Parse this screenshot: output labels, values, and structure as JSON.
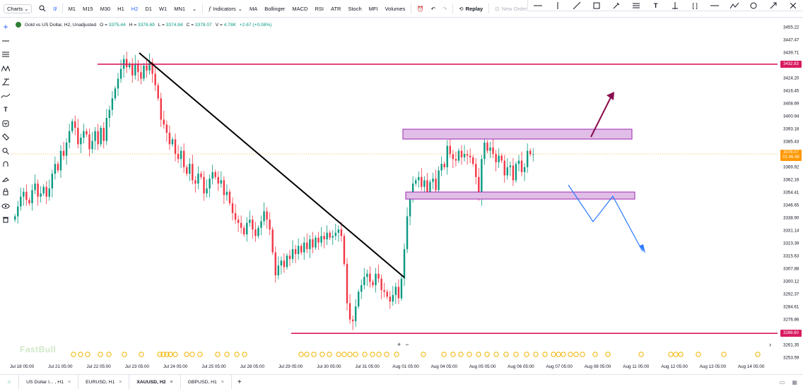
{
  "toolbar": {
    "charts_label": "Charts",
    "intervals": [
      "M1",
      "M15",
      "M30",
      "H1",
      "H2",
      "D1",
      "W1",
      "MN1"
    ],
    "active_interval": "H2",
    "indicators_label": "Indicators",
    "indicator_buttons": [
      "MA",
      "Bollinger",
      "MACD",
      "RSI",
      "ATR",
      "Stoch",
      "MFI",
      "Volumes"
    ],
    "replay_label": "Replay",
    "new_order_label": "New Order"
  },
  "legend": {
    "title": "Gold vs US Dollar, H2, Unadjusted",
    "o_label": "O =",
    "o_value": "3375.44",
    "h_label": "H =",
    "h_value": "3378.69",
    "l_label": "L =",
    "l_value": "3374.84",
    "c_label": "C =",
    "c_value": "3378.07",
    "v_label": "V =",
    "v_value": "4.78K",
    "change": "+2.67 (+0.08%)"
  },
  "price_axis": {
    "ticks": [
      "3455.22",
      "3447.47",
      "3439.71",
      "3431.96",
      "3424.20",
      "3416.45",
      "3408.69",
      "3400.94",
      "3393.18",
      "3385.43",
      "3377.68",
      "3369.92",
      "3362.16",
      "3354.41",
      "3346.65",
      "3338.90",
      "3331.14",
      "3323.39",
      "3315.63",
      "3307.88",
      "3300.12",
      "3292.37",
      "3284.61",
      "3276.86",
      "3269.10",
      "3261.35",
      "3253.59"
    ],
    "resistance_tag": "3432.83",
    "current_tag": "3378.07",
    "countdown_tag": "01:46:49",
    "support_tag": "3268.60"
  },
  "time_axis": {
    "labels": [
      "Jul 18 05:00",
      "Jul 21 05:00",
      "Jul 22 05:00",
      "Jul 23 05:00",
      "Jul 24 05:00",
      "Jul 25 05:00",
      "Jul 28 05:00",
      "Jul 29 05:00",
      "Jul 30 05:00",
      "Jul 31 05:00",
      "Aug 01 05:00",
      "Aug 04 05:00",
      "Aug 05 05:00",
      "Aug 06 05:00",
      "Aug 07 05:00",
      "Aug 08 05:00",
      "Aug 11 05:00",
      "Aug 12 05:00",
      "Aug 13 05:00",
      "Aug 14 05:00"
    ]
  },
  "zoom": {
    "plus": "+",
    "minus": "−"
  },
  "watermark": "FastBull",
  "tabs": [
    {
      "label": "US Dollar I... , H1",
      "active": false
    },
    {
      "label": "EURUSD, H1",
      "active": false
    },
    {
      "label": "XAUUSD, H2",
      "active": true
    },
    {
      "label": "GBPUSD, H1",
      "active": false
    }
  ],
  "tab_add": "+",
  "colors": {
    "bull": "#089981",
    "bear": "#f23645",
    "level_line": "#d81b60",
    "zone_fill": "#e1bee7",
    "zone_border": "#9c27b0",
    "arrow_up": "#880e4f",
    "arrow_down": "#2979ff",
    "current_price": "#ff9800"
  },
  "chart_data": {
    "type": "candlestick",
    "symbol": "XAUUSD",
    "interval": "H2",
    "ylim": [
      3253.59,
      3455.22
    ],
    "closes": [
      3340,
      3346,
      3352,
      3355,
      3350,
      3348,
      3356,
      3360,
      3352,
      3354,
      3358,
      3352,
      3357,
      3366,
      3372,
      3368,
      3380,
      3377,
      3385,
      3392,
      3398,
      3394,
      3384,
      3388,
      3392,
      3390,
      3381,
      3386,
      3392,
      3384,
      3394,
      3386,
      3400,
      3405,
      3412,
      3418,
      3424,
      3430,
      3436,
      3431,
      3433,
      3426,
      3433,
      3428,
      3424,
      3432,
      3429,
      3434,
      3427,
      3420,
      3412,
      3399,
      3396,
      3391,
      3384,
      3387,
      3378,
      3375,
      3380,
      3370,
      3366,
      3372,
      3362,
      3360,
      3366,
      3364,
      3354,
      3357,
      3363,
      3367,
      3364,
      3360,
      3362,
      3353,
      3355,
      3348,
      3342,
      3338,
      3336,
      3333,
      3329,
      3336,
      3338,
      3332,
      3328,
      3333,
      3337,
      3343,
      3338,
      3332,
      3318,
      3304,
      3310,
      3313,
      3309,
      3316,
      3314,
      3320,
      3317,
      3322,
      3318,
      3324,
      3320,
      3326,
      3321,
      3327,
      3324,
      3328,
      3326,
      3330,
      3327,
      3328,
      3330,
      3332,
      3328,
      3311,
      3287,
      3277,
      3276,
      3285,
      3294,
      3298,
      3303,
      3305,
      3300,
      3298,
      3305,
      3302,
      3295,
      3294,
      3291,
      3288,
      3292,
      3297,
      3290,
      3302,
      3320,
      3340,
      3352,
      3360,
      3362,
      3364,
      3358,
      3362,
      3354,
      3361,
      3363,
      3356,
      3368,
      3372,
      3370,
      3383,
      3378,
      3375,
      3374,
      3380,
      3376,
      3378,
      3377,
      3376,
      3372,
      3364,
      3352,
      3375,
      3385,
      3380,
      3382,
      3378,
      3373,
      3377,
      3374,
      3365,
      3370,
      3371,
      3362,
      3372,
      3374,
      3367,
      3370,
      3380,
      3378,
      3378
    ]
  }
}
